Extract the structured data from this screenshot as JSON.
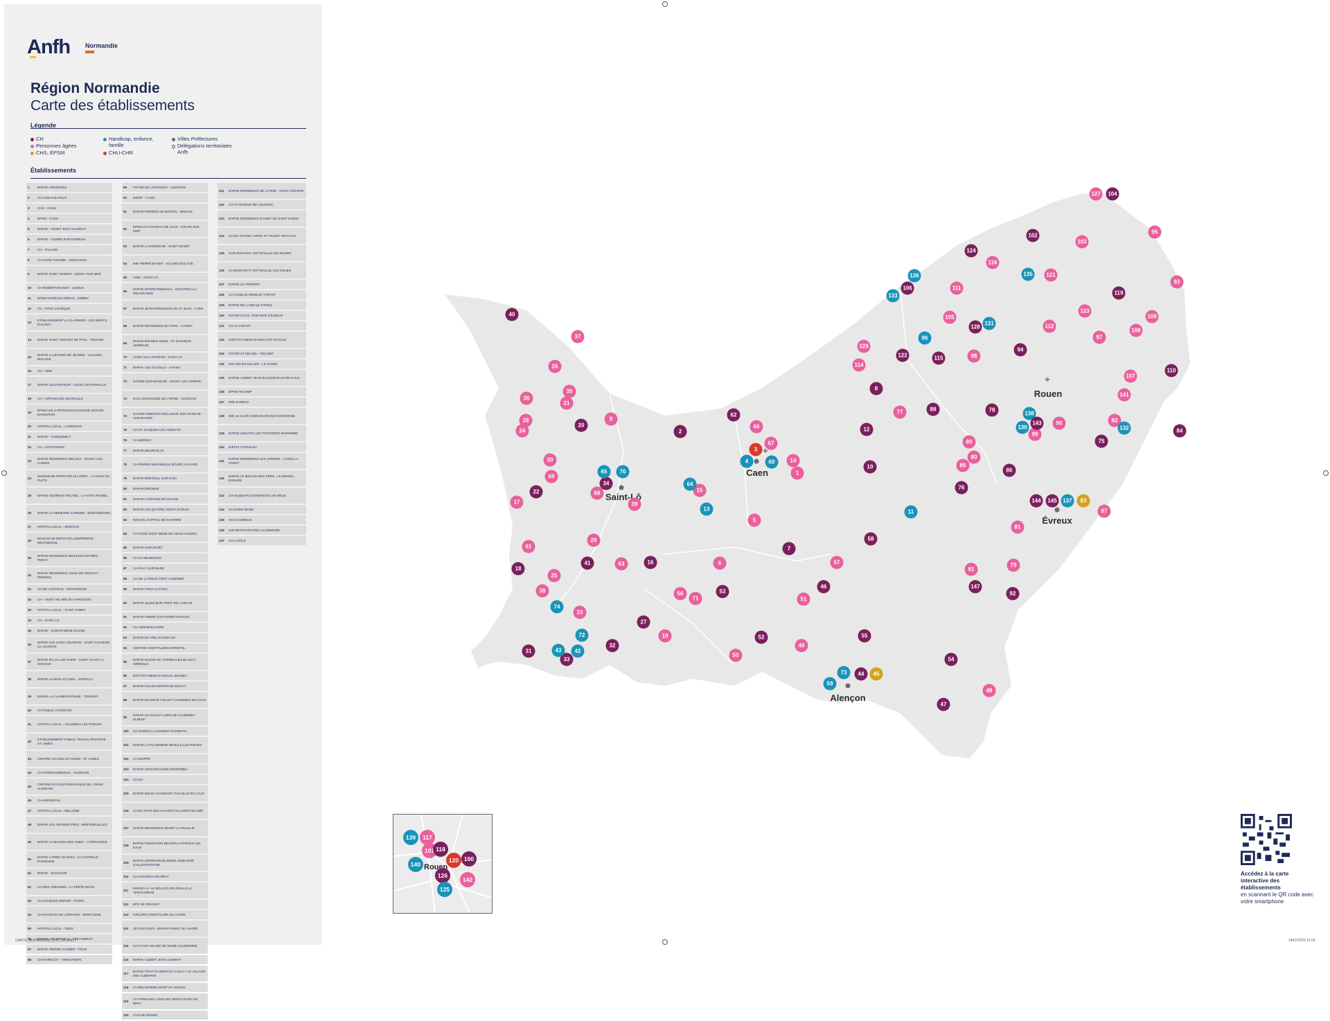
{
  "logo": {
    "text": "Anfh",
    "region": "Normandie"
  },
  "title": {
    "line1": "Région Normandie",
    "line2": "Carte des établissements"
  },
  "legend": {
    "heading": "Légende",
    "items": [
      {
        "label": "CH",
        "color": "#7a1f5c"
      },
      {
        "label": "Personnes âgées",
        "color": "#e8609c"
      },
      {
        "label": "CHS, EPSM",
        "color": "#d4a21c"
      },
      {
        "label": "Handicap, enfance, famille",
        "color": "#1a93b8"
      },
      {
        "label": "CHU-CHR",
        "color": "#d93a2a"
      },
      {
        "label": "Villes Préfectures",
        "color": "#6b6b6b"
      },
      {
        "label": "Délégations territoriales Anfh",
        "color": "#6b6b6b"
      }
    ]
  },
  "etab_heading": "Établissements",
  "establishments": [
    {
      "n": "1",
      "t": "EHPAD ARGENCES"
    },
    {
      "n": "2",
      "t": "CH AUNAY-BAYEUX"
    },
    {
      "n": "3",
      "t": "CHU - CAEN"
    },
    {
      "n": "4",
      "t": "EPSM - CAEN"
    },
    {
      "n": "5",
      "t": "EHPAD - CESNY BOIS HALBOUT"
    },
    {
      "n": "6",
      "t": "EHPAD - CONDE SUR NOIREAU"
    },
    {
      "n": "7",
      "t": "CH - FALAISE"
    },
    {
      "n": "8",
      "t": "CH COTE FLEURIE - HONFLEUR"
    },
    {
      "n": "9",
      "t": "EHPAD SAINT JOSEPH - ISIGNY SUR MER"
    },
    {
      "n": "10",
      "t": "CH ROBERT BISSON - LISIEUX"
    },
    {
      "n": "11",
      "t": "EPMS MARIE DU MERLE - ORBEC"
    },
    {
      "n": "12",
      "t": "CH - PONT L'EVEQUE"
    },
    {
      "n": "13",
      "t": "ETABLISSEMENT LA CLAIRIERE - LES MONTS D'AUNAY"
    },
    {
      "n": "14",
      "t": "EHPAD SAINT VINCENT DE PAUL - TROARN"
    },
    {
      "n": "15",
      "t": "EHPAD LA MAISON DE JEANNE - VALLEES BOCAGE"
    },
    {
      "n": "16",
      "t": "CH - VIRE"
    },
    {
      "n": "17",
      "t": "EHPAD LECHANTEUR - AGON COUTAINVILLE"
    },
    {
      "n": "18",
      "t": "CH - AVRANCHES GRANVILLE"
    },
    {
      "n": "19",
      "t": "EPSM LES 4 PROVINCES EUGENE VEZARD - BARENTON"
    },
    {
      "n": "20",
      "t": "HOPITAL LOCAL - CARENTAN"
    },
    {
      "n": "21",
      "t": "EHPAD - CARQUEBUT"
    },
    {
      "n": "22",
      "t": "CH - COUTANCES"
    },
    {
      "n": "23",
      "t": "EHPAD RESIDENCE DELIVET - DUCEY LES CHERIS"
    },
    {
      "n": "24",
      "t": "MAISON DE RETRAITE LE LORET - LA HAYE DU PUITS"
    },
    {
      "n": "25",
      "t": "EHPAD GEORGES PELVIEL - LA HAYE PESNEL"
    },
    {
      "n": "26",
      "t": "EHPAD LA DEMEURE CARDINE - MONTEBOURG"
    },
    {
      "n": "27",
      "t": "HOPITAL LOCAL - MORTAIN"
    },
    {
      "n": "28",
      "t": "MAISON DE RETRAITE LEMPERIERE - NEUFMESNIL"
    },
    {
      "n": "29",
      "t": "EHPAD RESIDENCE DES ESPLANTINES - PERCY"
    },
    {
      "n": "30",
      "t": "EHPAD RESIDENCE ANAIS DE GROUCY - PERIERS"
    },
    {
      "n": "31",
      "t": "CH DE L'ESTRAN - PONTORSON"
    },
    {
      "n": "32",
      "t": "CH - SAINT HILAIRE DU HARCOUET"
    },
    {
      "n": "33",
      "t": "HOPITAL LOCAL - SAINT JAMES"
    },
    {
      "n": "34",
      "t": "CH - SAINT LO"
    },
    {
      "n": "35",
      "t": "EHPAD - SAINTE MERE EGLISE"
    },
    {
      "n": "36",
      "t": "EHPAD LES LICES JOURDAN - SAINT SAUVEUR LE VICOMTE"
    },
    {
      "n": "37",
      "t": "EHPAD DU VAL DE SAIRE - SAINT VAAST LA HOUGUE"
    },
    {
      "n": "38",
      "t": "EHPAD AU BON ACCUEIL - SARTILLY"
    },
    {
      "n": "39",
      "t": "EHPAD LA CLAIREFONTAINE - TORIGNY"
    },
    {
      "n": "40",
      "t": "CH PUBLIC COTENTIN"
    },
    {
      "n": "41",
      "t": "HOPITAL LOCAL - VILLEDIEU LES POELES"
    },
    {
      "n": "42",
      "t": "ETABLISSEMENT PUBLIC TRAVAIL PROTEGE - ST JAMES"
    },
    {
      "n": "43",
      "t": "CENTRE ACCUEIL ET SOINS - ST JAMES"
    },
    {
      "n": "44",
      "t": "CH INTERCOMMUNAL - ALENCON"
    },
    {
      "n": "45",
      "t": "CENTRE PSYCHOTHERAPIQUE DE L'ORNE - ALENCON"
    },
    {
      "n": "46",
      "t": "CH ARGENTAN"
    },
    {
      "n": "47",
      "t": "HOPITAL LOCAL - BELLEME"
    },
    {
      "n": "48",
      "t": "EHPAD LES GRANDS PRES - BRETONCELLES"
    },
    {
      "n": "49",
      "t": "EHPAD LA MAISON DES AINES - CARROUGES"
    },
    {
      "n": "50",
      "t": "EHPAD L'OREE DU BOIS - LA CHAPELLE D'ANDAINE"
    },
    {
      "n": "51",
      "t": "EHPAD - ECOUCHE"
    },
    {
      "n": "52",
      "t": "CH DES ANDAINES - LA FERTE MACE"
    },
    {
      "n": "53",
      "t": "CH JACQUES MONOD - FLERS"
    },
    {
      "n": "54",
      "t": "CH MAURICE DE LORRAINE - MORTAGNE"
    },
    {
      "n": "55",
      "t": "HOPITAL LOCAL - SEES"
    },
    {
      "n": "56",
      "t": "EHPAD LES EPICEAS - TINCHEBRAY"
    },
    {
      "n": "57",
      "t": "EHPAD PIERRE HAUBER - TRUN"
    },
    {
      "n": "58",
      "t": "CH MARECOT - VIMOUTIERS"
    },
    {
      "n": "59",
      "t": "FOYER DE L'ENFANCE - ALENCON"
    },
    {
      "n": "60",
      "t": "IMDEF - CAEN"
    },
    {
      "n": "61",
      "t": "EHPAD PERIERS-LE-MANTEL - BREHAL"
    },
    {
      "n": "62",
      "t": "EPMS DU CHATEAU DE VAUX - GRAYE SUR MER"
    },
    {
      "n": "63",
      "t": "EHPAD LA ROSERAIE - SAINT SEVER"
    },
    {
      "n": "64",
      "t": "IME PIERRE BAYER - VILLERS BOCAGE"
    },
    {
      "n": "65",
      "t": "CRIE - SAINT LO"
    },
    {
      "n": "66",
      "t": "EHPAD INTERCOMMUNAL - DOUVRES-LA-DELIVRANDE"
    },
    {
      "n": "67",
      "t": "EHPAD JEAN-FERDINAND DE ST JEAN - CAEN"
    },
    {
      "n": "68",
      "t": "EHPAD RESIDENCE DU PARC - CANISY"
    },
    {
      "n": "69",
      "t": "EHPAD BONNES GENS - ST SAUVEUR LENDELIN"
    },
    {
      "n": "70",
      "t": "CHRS VILLA MYRIAM - SAINT LO"
    },
    {
      "n": "71",
      "t": "EHPAD LES TILLEULS - CHANU"
    },
    {
      "n": "72",
      "t": "GCSMS SUD-MANCHE - DUCEY LES CHERIS"
    },
    {
      "n": "73",
      "t": "GCS LOGISTIQUE DE L'ORNE - ALENCON"
    },
    {
      "n": "74",
      "t": "GCSMS AMBITION INCLUSIVE SUD MANCHE - AVRANCHES"
    },
    {
      "n": "75",
      "t": "CH ST JACQUES LES ANDELYS"
    },
    {
      "n": "76",
      "t": "CH BERNAY"
    },
    {
      "n": "77",
      "t": "EHPAD BEUZEVILLE"
    },
    {
      "n": "78",
      "t": "CH PIERRE MUR-MIELLE BOURG ACHARD"
    },
    {
      "n": "79",
      "t": "EHPAD BRETEUIL-SUR-ITON"
    },
    {
      "n": "80",
      "t": "EHPAD BRIONNE"
    },
    {
      "n": "81",
      "t": "EHPAD CONCHES EN OUCHE"
    },
    {
      "n": "82",
      "t": "EHPAD LES QUATRE VENTS ECOUIS"
    },
    {
      "n": "83",
      "t": "NOUVEL HOPITAL DE NAVARRE"
    },
    {
      "n": "84",
      "t": "CH POSE SAINT MEDE EN VEXIN GISORS"
    },
    {
      "n": "85",
      "t": "EHPAD HARCOURT"
    },
    {
      "n": "86",
      "t": "CH LE NEUBOURG"
    },
    {
      "n": "87",
      "t": "CH PACY SUR EURE"
    },
    {
      "n": "88",
      "t": "CH DE LA RISLE PONT AUDEMER"
    },
    {
      "n": "89",
      "t": "EHPAD PONT AUTHOU"
    },
    {
      "n": "90",
      "t": "EHPAD JULES BUIN PONT DE L'ARCHE"
    },
    {
      "n": "91",
      "t": "EHPAD ANDRE COUTURIER RUGLES"
    },
    {
      "n": "92",
      "t": "CH VERNEUIL/AVRE"
    },
    {
      "n": "93",
      "t": "EHPAD DU VIEIL EVANDALE"
    },
    {
      "n": "94",
      "t": "CENTRE HOSPITALIER DARNETAL"
    },
    {
      "n": "95",
      "t": "EHPAD MASSE DE CORNEILLES BLANGY S/BRESLE"
    },
    {
      "n": "96",
      "t": "INSTITUT MEDICO-SOCIAL BOLBEC"
    },
    {
      "n": "97",
      "t": "EHPAD GILLES MARTIN DE BUCHY"
    },
    {
      "n": "98",
      "t": "EHPAD MAURICE COLLET CAUDEBEC EN CAUX"
    },
    {
      "n": "99",
      "t": "EHPAD LE CHALET LERICHE CAUDEBEC-ELBEUF"
    },
    {
      "n": "100",
      "t": "CH DURECU LAVOISIER DARNETAL"
    },
    {
      "n": "101",
      "t": "EHPAD LA FILANDIERE DEVILLE-LES-ROUEN"
    },
    {
      "n": "102",
      "t": "CH DIEPPE"
    },
    {
      "n": "103",
      "t": "EHPAD LENAARCHAND ENVERMEU"
    },
    {
      "n": "104",
      "t": "CH EU"
    },
    {
      "n": "105",
      "t": "EHPAD BOUIC-VAUNOURY FAUVILLE EN CAUX"
    },
    {
      "n": "106",
      "t": "CH DU PAYS DES HAUTES FALAISES FECAMP"
    },
    {
      "n": "107",
      "t": "EHPAD RESIDENCE NOURY LA FEUILLIE"
    },
    {
      "n": "108",
      "t": "EHPAD FONDATION BEAUFILS FORGES LES EAUX"
    },
    {
      "n": "109",
      "t": "EHPAD LEFEBVRE BLONDEL DUBUISSE GAILLEFONTAINE"
    },
    {
      "n": "110",
      "t": "CH GOURNAY EN BRAY"
    },
    {
      "n": "111",
      "t": "EHPAD A.F. LE BOULTZ GRAINVILLE LA TEINTURIERE"
    },
    {
      "n": "112",
      "t": "EFD DE GRUGNY"
    },
    {
      "n": "113",
      "t": "GROUPE HOSPITALIER DU HAVRE"
    },
    {
      "n": "114",
      "t": "LES ESCALES - EHPAD PUBLIC DU HAVRE"
    },
    {
      "n": "115",
      "t": "CHI CAUX VALLEE DE SEINE LILLEBONNE"
    },
    {
      "n": "116",
      "t": "EHPAD ALBERT JEAN LUNERAY"
    },
    {
      "n": "117",
      "t": "EHPAD TRAIT D'UNION DU CAILLY / LE VILLAGE DES AUBEPINS"
    },
    {
      "n": "118",
      "t": "CH BELVEDERE MONT ST AIGNAN"
    },
    {
      "n": "119",
      "t": "CH FERNAND LANGLOIS NEUFCHATEL EN BRAY"
    },
    {
      "n": "120",
      "t": "CHU DE ROUEN"
    },
    {
      "n": "121",
      "t": "EHPAD RESIDENCE DE LA ROE - SAINT CRESPIN"
    },
    {
      "n": "122",
      "t": "CH ST ROMAIN DE COLBOSC"
    },
    {
      "n": "123",
      "t": "EHPAD RESIDENCE D'AUMY DE SAINT SAENS"
    },
    {
      "n": "124",
      "t": "CH DU GRAND LARGE ST VALERY EN CAUX"
    },
    {
      "n": "125",
      "t": "CHR ROUVRAY SOTTEVILLE LES ROUEN"
    },
    {
      "n": "126",
      "t": "CH BOIS PETIT SOTTEVILLE LES ROUEN"
    },
    {
      "n": "127",
      "t": "EHPAD LE TREPORT"
    },
    {
      "n": "128",
      "t": "CH ASSELIN-HEDELIN YVETOT"
    },
    {
      "n": "129",
      "t": "EHPAD DE LA BELLE ETOILE"
    },
    {
      "n": "130",
      "t": "FOYER D'ACC. ENFANCE D'ELBEUF"
    },
    {
      "n": "131",
      "t": "CCAS YVETOT"
    },
    {
      "n": "132",
      "t": "INSTITUT MEDICO EDUCATIF ECOUIS"
    },
    {
      "n": "133",
      "t": "FOYER ST MICHEL - FECAMP"
    },
    {
      "n": "134",
      "t": "EPA HELEN KELLER - LE HAVRE"
    },
    {
      "n": "135",
      "t": "EHPAD ALBERT JEAN BACQUEVILLE-EN-CAUX"
    },
    {
      "n": "136",
      "t": "EPMS FECAMP"
    },
    {
      "n": "137",
      "t": "FDE EVREUX"
    },
    {
      "n": "138",
      "t": "IME LE CLOS SAMSON GRAND COURONNE"
    },
    {
      "n": "139",
      "t": "EHPAD ADULTES LES FOUGERES MAROMME"
    },
    {
      "n": "140",
      "t": "IDEFHI CANTELEU"
    },
    {
      "n": "141",
      "t": "EHPAD RESIDENCE LES JARDINS - LYONS LA FORET"
    },
    {
      "n": "142",
      "t": "EHPAD LE MOULIN DES PRES - LE MESNIL-ESNARD"
    },
    {
      "n": "143",
      "t": "CHI ELBEUF/LOUVIERS/VAL DE REUIL"
    },
    {
      "n": "144",
      "t": "CH EURE-SEINE"
    },
    {
      "n": "145",
      "t": "GCS CAMBOLE"
    },
    {
      "n": "146",
      "t": "GIE RESTAURATION LILLEBONNE"
    },
    {
      "n": "147",
      "t": "CH L'AIGLE"
    }
  ],
  "cities": {
    "rouen": "Rouen",
    "caen": "Caen",
    "saintlo": "Saint-Lô",
    "evreux": "Évreux",
    "alencon": "Alençon"
  },
  "markers": [
    {
      "n": "1",
      "c": "pa"
    },
    {
      "n": "2",
      "c": "ch"
    },
    {
      "n": "3",
      "c": "chu"
    },
    {
      "n": "4",
      "c": "hef"
    },
    {
      "n": "5",
      "c": "pa"
    },
    {
      "n": "6",
      "c": "pa"
    },
    {
      "n": "7",
      "c": "ch"
    },
    {
      "n": "8",
      "c": "ch"
    },
    {
      "n": "9",
      "c": "pa"
    },
    {
      "n": "10",
      "c": "ch"
    },
    {
      "n": "11",
      "c": "hef"
    },
    {
      "n": "12",
      "c": "ch"
    },
    {
      "n": "13",
      "c": "hef"
    },
    {
      "n": "14",
      "c": "pa"
    },
    {
      "n": "15",
      "c": "pa"
    },
    {
      "n": "16",
      "c": "ch"
    },
    {
      "n": "17",
      "c": "pa"
    },
    {
      "n": "18",
      "c": "ch"
    },
    {
      "n": "19",
      "c": "pa"
    },
    {
      "n": "20",
      "c": "ch"
    },
    {
      "n": "21",
      "c": "pa"
    },
    {
      "n": "22",
      "c": "ch"
    },
    {
      "n": "23",
      "c": "pa"
    },
    {
      "n": "24",
      "c": "pa"
    },
    {
      "n": "25",
      "c": "pa"
    },
    {
      "n": "26",
      "c": "pa"
    },
    {
      "n": "27",
      "c": "ch"
    },
    {
      "n": "28",
      "c": "pa"
    },
    {
      "n": "29",
      "c": "pa"
    },
    {
      "n": "30",
      "c": "pa"
    },
    {
      "n": "31",
      "c": "ch"
    },
    {
      "n": "32",
      "c": "ch"
    },
    {
      "n": "33",
      "c": "ch"
    },
    {
      "n": "34",
      "c": "ch"
    },
    {
      "n": "35",
      "c": "pa"
    },
    {
      "n": "36",
      "c": "pa"
    },
    {
      "n": "37",
      "c": "pa"
    },
    {
      "n": "38",
      "c": "pa"
    },
    {
      "n": "39",
      "c": "pa"
    },
    {
      "n": "40",
      "c": "ch"
    },
    {
      "n": "41",
      "c": "ch"
    },
    {
      "n": "42",
      "c": "hef"
    },
    {
      "n": "43",
      "c": "hef"
    },
    {
      "n": "44",
      "c": "ch"
    },
    {
      "n": "45",
      "c": "chs"
    },
    {
      "n": "46",
      "c": "ch"
    },
    {
      "n": "47",
      "c": "ch"
    },
    {
      "n": "48",
      "c": "pa"
    },
    {
      "n": "49",
      "c": "pa"
    },
    {
      "n": "50",
      "c": "pa"
    },
    {
      "n": "51",
      "c": "pa"
    },
    {
      "n": "52",
      "c": "ch"
    },
    {
      "n": "53",
      "c": "ch"
    },
    {
      "n": "54",
      "c": "ch"
    },
    {
      "n": "55",
      "c": "ch"
    },
    {
      "n": "56",
      "c": "pa"
    },
    {
      "n": "57",
      "c": "pa"
    },
    {
      "n": "58",
      "c": "ch"
    },
    {
      "n": "59",
      "c": "hef"
    },
    {
      "n": "60",
      "c": "hef"
    },
    {
      "n": "61",
      "c": "pa"
    },
    {
      "n": "62",
      "c": "ch"
    },
    {
      "n": "63",
      "c": "pa"
    },
    {
      "n": "64",
      "c": "hef"
    },
    {
      "n": "65",
      "c": "hef"
    },
    {
      "n": "66",
      "c": "pa"
    },
    {
      "n": "67",
      "c": "pa"
    },
    {
      "n": "68",
      "c": "pa"
    },
    {
      "n": "69",
      "c": "pa"
    },
    {
      "n": "70",
      "c": "hef"
    },
    {
      "n": "71",
      "c": "pa"
    },
    {
      "n": "72",
      "c": "hef"
    },
    {
      "n": "73",
      "c": "hef"
    },
    {
      "n": "74",
      "c": "hef"
    },
    {
      "n": "75",
      "c": "ch"
    },
    {
      "n": "76",
      "c": "ch"
    },
    {
      "n": "77",
      "c": "pa"
    },
    {
      "n": "78",
      "c": "ch"
    },
    {
      "n": "79",
      "c": "pa"
    },
    {
      "n": "80",
      "c": "pa"
    },
    {
      "n": "81",
      "c": "pa"
    },
    {
      "n": "82",
      "c": "pa"
    },
    {
      "n": "83",
      "c": "chs"
    },
    {
      "n": "84",
      "c": "ch"
    },
    {
      "n": "85",
      "c": "pa"
    },
    {
      "n": "86",
      "c": "ch"
    },
    {
      "n": "87",
      "c": "pa"
    },
    {
      "n": "88",
      "c": "ch"
    },
    {
      "n": "89",
      "c": "pa"
    },
    {
      "n": "90",
      "c": "pa"
    },
    {
      "n": "91",
      "c": "pa"
    },
    {
      "n": "92",
      "c": "ch"
    },
    {
      "n": "93",
      "c": "pa"
    },
    {
      "n": "94",
      "c": "ch"
    },
    {
      "n": "95",
      "c": "pa"
    },
    {
      "n": "96",
      "c": "hef"
    },
    {
      "n": "97",
      "c": "pa"
    },
    {
      "n": "98",
      "c": "pa"
    },
    {
      "n": "99",
      "c": "pa"
    },
    {
      "n": "102",
      "c": "ch"
    },
    {
      "n": "103",
      "c": "pa"
    },
    {
      "n": "104",
      "c": "ch"
    },
    {
      "n": "105",
      "c": "pa"
    },
    {
      "n": "106",
      "c": "ch"
    },
    {
      "n": "107",
      "c": "pa"
    },
    {
      "n": "108",
      "c": "pa"
    },
    {
      "n": "109",
      "c": "pa"
    },
    {
      "n": "110",
      "c": "ch"
    },
    {
      "n": "111",
      "c": "pa"
    },
    {
      "n": "112",
      "c": "pa"
    },
    {
      "n": "114",
      "c": "pa"
    },
    {
      "n": "115",
      "c": "ch"
    },
    {
      "n": "116",
      "c": "pa"
    },
    {
      "n": "119",
      "c": "ch"
    },
    {
      "n": "121",
      "c": "pa"
    },
    {
      "n": "122",
      "c": "ch"
    },
    {
      "n": "123",
      "c": "pa"
    },
    {
      "n": "124",
      "c": "ch"
    },
    {
      "n": "127",
      "c": "pa"
    },
    {
      "n": "128",
      "c": "ch"
    },
    {
      "n": "129",
      "c": "pa"
    },
    {
      "n": "130",
      "c": "hef"
    },
    {
      "n": "131",
      "c": "hef"
    },
    {
      "n": "132",
      "c": "hef"
    },
    {
      "n": "133",
      "c": "hef"
    },
    {
      "n": "135",
      "c": "hef"
    },
    {
      "n": "136",
      "c": "hef"
    },
    {
      "n": "137",
      "c": "hef"
    },
    {
      "n": "138",
      "c": "hef"
    },
    {
      "n": "141",
      "c": "pa"
    },
    {
      "n": "143",
      "c": "ch"
    },
    {
      "n": "144",
      "c": "ch"
    },
    {
      "n": "145",
      "c": "ch"
    },
    {
      "n": "147",
      "c": "ch"
    }
  ],
  "inset_markers": [
    {
      "n": "139",
      "c": "hef"
    },
    {
      "n": "117",
      "c": "pa"
    },
    {
      "n": "101",
      "c": "pa"
    },
    {
      "n": "118",
      "c": "ch"
    },
    {
      "n": "120",
      "c": "chu"
    },
    {
      "n": "100",
      "c": "ch"
    },
    {
      "n": "140",
      "c": "hef"
    },
    {
      "n": "126",
      "c": "ch"
    },
    {
      "n": "142",
      "c": "pa"
    },
    {
      "n": "125",
      "c": "hef"
    }
  ],
  "inset_label": "Rouen",
  "qr": {
    "bold": "Accédez à la carte interactive des établissements",
    "text": "en scannant le QR code avec votre smartphone"
  },
  "footer": {
    "left": "CARTE_NORMANDIE_2022_A1.indd   1",
    "right": "14/07/2022   11:03"
  },
  "colors": {
    "ch": "#7a1f5c",
    "pa": "#e8609c",
    "chs": "#d4a21c",
    "hef": "#1a93b8",
    "chu": "#d93a2a",
    "land": "#e8e8e8",
    "border": "#ffffff"
  }
}
